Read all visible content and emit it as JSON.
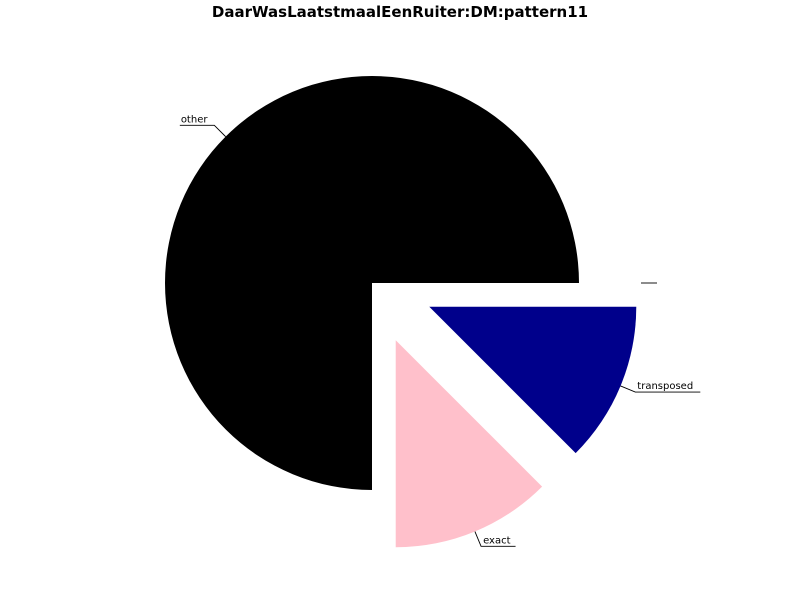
{
  "chart_data": {
    "type": "pie",
    "title": "DaarWasLaatstmaalEenRuiter:DM:pattern11",
    "legend": "none",
    "slices": [
      {
        "label": "other",
        "value": 75,
        "color": "#000000",
        "exploded": false
      },
      {
        "label": "exact",
        "value": 12.5,
        "color": "#ffc0cb",
        "exploded": true
      },
      {
        "label": "transposed",
        "value": 12.5,
        "color": "#00008b",
        "exploded": true
      },
      {
        "label": "",
        "value": 0,
        "color": "#ffffff",
        "exploded": true
      }
    ]
  }
}
